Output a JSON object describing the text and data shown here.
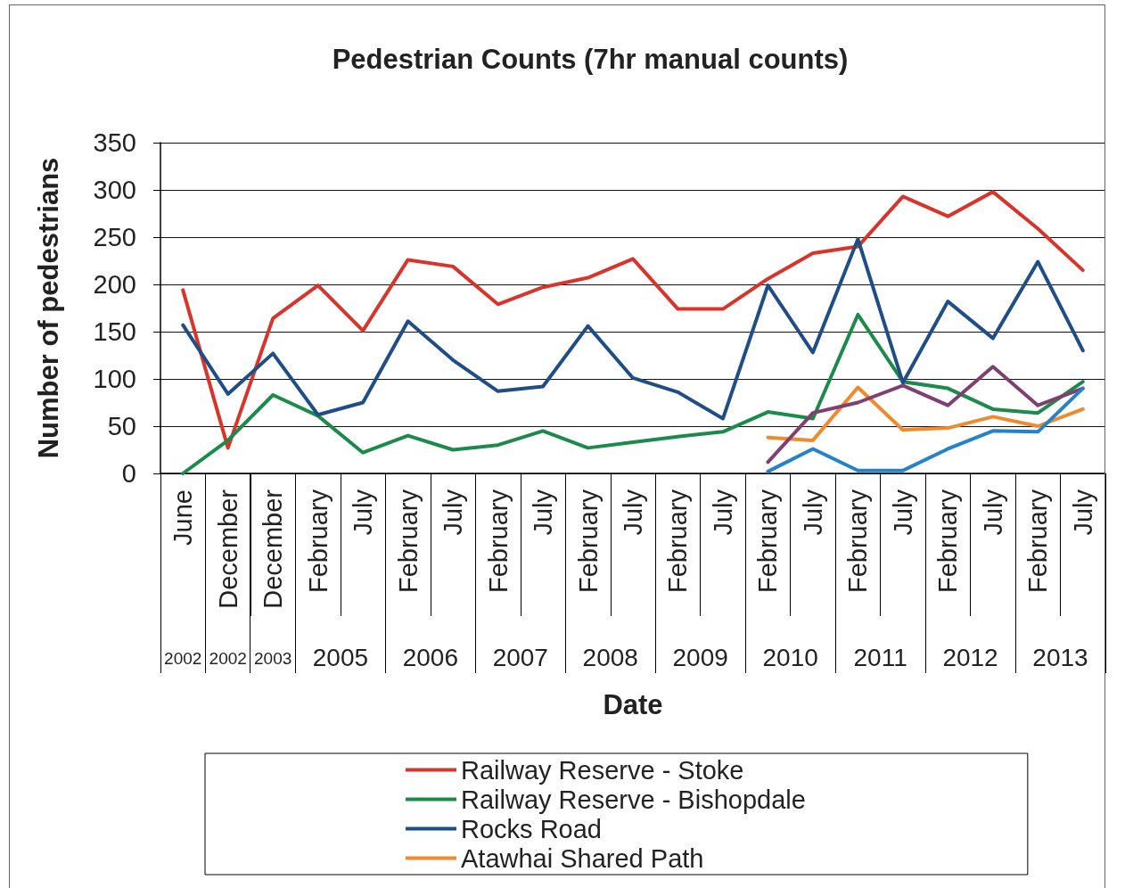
{
  "chart_data": {
    "type": "line",
    "title": "Pedestrian Counts (7hr manual counts)",
    "xlabel": "Date",
    "ylabel": "Number of pedestrians",
    "categories": [
      "June",
      "December",
      "December",
      "February",
      "July",
      "February",
      "July",
      "February",
      "July",
      "February",
      "July",
      "February",
      "July",
      "February",
      "July",
      "February",
      "July",
      "February",
      "July",
      "February",
      "July"
    ],
    "annotations": [
      "2002",
      "2002",
      "2003",
      "2005",
      "2006",
      "2007",
      "2008",
      "2009",
      "2010",
      "2011",
      "2012",
      "2013"
    ],
    "ylim": [
      0,
      350
    ],
    "yticks": [
      0,
      50,
      100,
      150,
      200,
      250,
      300,
      350
    ],
    "grid": "y",
    "legend": "bottom",
    "marker": "none",
    "line_style": "solid",
    "series": [
      {
        "name": "Railway Reserve - Stoke",
        "color": "#d9342b",
        "values": [
          194,
          27,
          164,
          199,
          151,
          226,
          219,
          179,
          197,
          207,
          227,
          174,
          174,
          206,
          233,
          240,
          293,
          272,
          298,
          259,
          215
        ]
      },
      {
        "name": "Railway Reserve - Bishopdale",
        "color": "#1b8a4b",
        "values": [
          0,
          35,
          83,
          61,
          22,
          40,
          25,
          30,
          45,
          27,
          33,
          39,
          44,
          65,
          58,
          168,
          97,
          90,
          68,
          64,
          97
        ]
      },
      {
        "name": "Rocks Road",
        "color": "#1f4d85",
        "values": [
          157,
          84,
          127,
          62,
          75,
          161,
          120,
          87,
          92,
          156,
          101,
          86,
          58,
          199,
          128,
          248,
          96,
          182,
          143,
          224,
          130
        ]
      },
      {
        "name": "Atawhai Shared Path",
        "color": "#f08a2c",
        "values": [
          null,
          null,
          null,
          null,
          null,
          null,
          null,
          null,
          null,
          null,
          null,
          null,
          null,
          38,
          35,
          91,
          46,
          48,
          60,
          50,
          68
        ]
      },
      {
        "color": "#7f3f70",
        "values": [
          null,
          null,
          null,
          null,
          null,
          null,
          null,
          null,
          null,
          null,
          null,
          null,
          null,
          12,
          64,
          75,
          93,
          72,
          113,
          72,
          90
        ]
      },
      {
        "color": "#2483c8",
        "values": [
          null,
          null,
          null,
          null,
          null,
          null,
          null,
          null,
          null,
          null,
          null,
          null,
          null,
          2,
          26,
          3,
          3,
          26,
          45,
          44,
          90
        ]
      }
    ]
  }
}
